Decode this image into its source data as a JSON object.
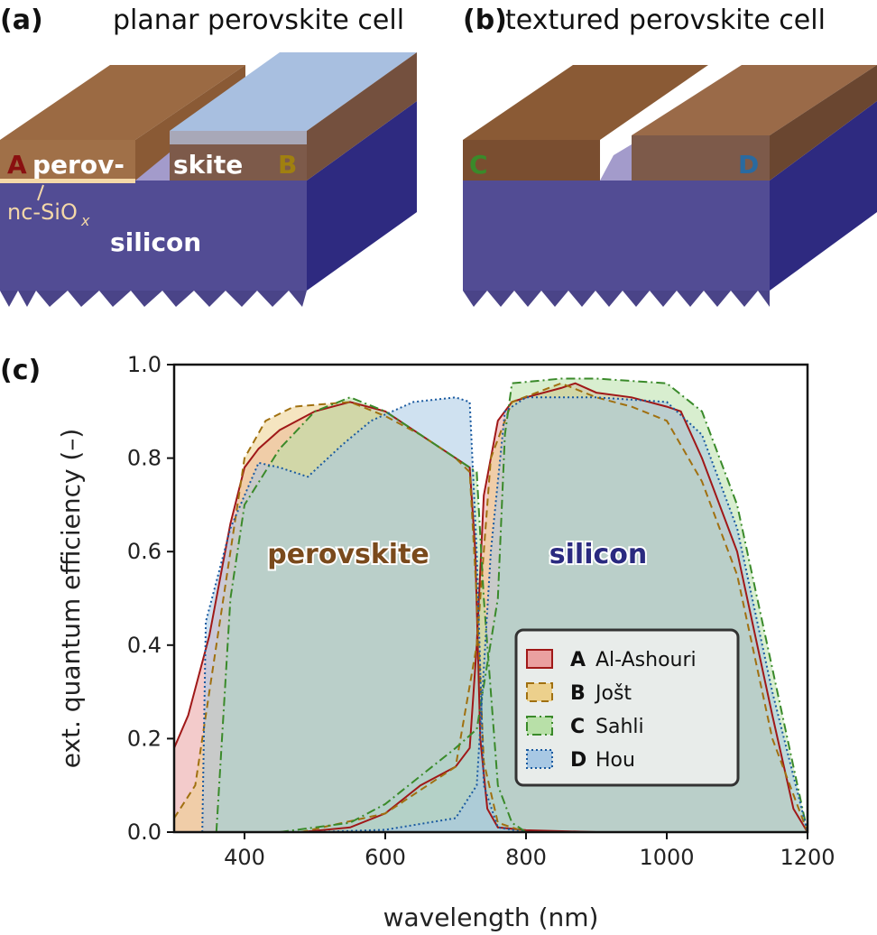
{
  "panels": {
    "a": {
      "label": "(a)",
      "title": "planar perovskite cell",
      "perov_left": "perov-",
      "perov_right": "skite",
      "marker_a": "A",
      "marker_b": "B",
      "sio_main": "nc-SiO",
      "sio_sub": "x",
      "silicon": "silicon"
    },
    "b": {
      "label": "(b)",
      "title": "textured perovskite cell",
      "marker_c": "C",
      "marker_d": "D"
    },
    "c": {
      "label": "(c)"
    }
  },
  "colors": {
    "perovskite": "#9b6a43",
    "silicon": "#524c94",
    "silicon_side": "#2e2a80",
    "overlap": "#8eaa96"
  },
  "chart_data": {
    "type": "area",
    "xlabel": "wavelength (nm)",
    "ylabel": "ext. quantum efficiency (–)",
    "xlim": [
      300,
      1200
    ],
    "ylim": [
      0,
      1.0
    ],
    "xticks": [
      "400",
      "600",
      "800",
      "1000",
      "1200"
    ],
    "yticks": [
      "0.0",
      "0.2",
      "0.4",
      "0.6",
      "0.8",
      "1.0"
    ],
    "annotations": {
      "perovskite": "perovskite",
      "silicon": "silicon"
    },
    "legend_position": "lower-right",
    "series": [
      {
        "id": "A",
        "name": "Al-Ashouri",
        "line": "#a01818",
        "fill": "#eaa0a0",
        "dash": "",
        "perovskite": [
          [
            300,
            0.18
          ],
          [
            320,
            0.25
          ],
          [
            350,
            0.42
          ],
          [
            380,
            0.66
          ],
          [
            400,
            0.78
          ],
          [
            420,
            0.82
          ],
          [
            450,
            0.86
          ],
          [
            500,
            0.9
          ],
          [
            550,
            0.92
          ],
          [
            600,
            0.9
          ],
          [
            650,
            0.85
          ],
          [
            700,
            0.8
          ],
          [
            720,
            0.78
          ],
          [
            728,
            0.6
          ],
          [
            735,
            0.2
          ],
          [
            745,
            0.05
          ],
          [
            760,
            0.01
          ],
          [
            800,
            0.004
          ],
          [
            900,
            0
          ]
        ],
        "silicon": [
          [
            480,
            0
          ],
          [
            550,
            0.01
          ],
          [
            600,
            0.04
          ],
          [
            650,
            0.1
          ],
          [
            700,
            0.14
          ],
          [
            720,
            0.18
          ],
          [
            730,
            0.4
          ],
          [
            740,
            0.72
          ],
          [
            760,
            0.88
          ],
          [
            780,
            0.92
          ],
          [
            800,
            0.93
          ],
          [
            850,
            0.95
          ],
          [
            870,
            0.96
          ],
          [
            900,
            0.94
          ],
          [
            950,
            0.93
          ],
          [
            1000,
            0.91
          ],
          [
            1020,
            0.9
          ],
          [
            1050,
            0.8
          ],
          [
            1100,
            0.6
          ],
          [
            1150,
            0.25
          ],
          [
            1180,
            0.05
          ],
          [
            1200,
            0
          ]
        ]
      },
      {
        "id": "B",
        "name": "Jošt",
        "line": "#a07010",
        "fill": "#ecd08c",
        "dash": "8,5",
        "perovskite": [
          [
            300,
            0.03
          ],
          [
            330,
            0.1
          ],
          [
            350,
            0.3
          ],
          [
            380,
            0.6
          ],
          [
            400,
            0.8
          ],
          [
            430,
            0.88
          ],
          [
            470,
            0.91
          ],
          [
            550,
            0.92
          ],
          [
            600,
            0.89
          ],
          [
            650,
            0.85
          ],
          [
            700,
            0.8
          ],
          [
            720,
            0.77
          ],
          [
            730,
            0.5
          ],
          [
            740,
            0.15
          ],
          [
            760,
            0.02
          ],
          [
            800,
            0
          ]
        ],
        "silicon": [
          [
            480,
            0
          ],
          [
            600,
            0.04
          ],
          [
            700,
            0.14
          ],
          [
            730,
            0.4
          ],
          [
            750,
            0.8
          ],
          [
            780,
            0.92
          ],
          [
            850,
            0.96
          ],
          [
            900,
            0.93
          ],
          [
            950,
            0.91
          ],
          [
            1000,
            0.88
          ],
          [
            1050,
            0.75
          ],
          [
            1100,
            0.55
          ],
          [
            1150,
            0.2
          ],
          [
            1200,
            0
          ]
        ]
      },
      {
        "id": "C",
        "name": "Sahli",
        "line": "#3a8a2a",
        "fill": "#b8e0a8",
        "dash": "10,4,2,4",
        "perovskite": [
          [
            360,
            0
          ],
          [
            380,
            0.5
          ],
          [
            400,
            0.7
          ],
          [
            450,
            0.82
          ],
          [
            500,
            0.9
          ],
          [
            550,
            0.93
          ],
          [
            600,
            0.9
          ],
          [
            650,
            0.85
          ],
          [
            700,
            0.8
          ],
          [
            730,
            0.77
          ],
          [
            740,
            0.5
          ],
          [
            760,
            0.1
          ],
          [
            780,
            0.02
          ],
          [
            800,
            0
          ]
        ],
        "silicon": [
          [
            450,
            0
          ],
          [
            550,
            0.02
          ],
          [
            600,
            0.06
          ],
          [
            650,
            0.12
          ],
          [
            700,
            0.18
          ],
          [
            730,
            0.22
          ],
          [
            760,
            0.5
          ],
          [
            770,
            0.85
          ],
          [
            780,
            0.96
          ],
          [
            850,
            0.97
          ],
          [
            900,
            0.97
          ],
          [
            1000,
            0.96
          ],
          [
            1050,
            0.9
          ],
          [
            1100,
            0.7
          ],
          [
            1150,
            0.35
          ],
          [
            1200,
            0
          ]
        ]
      },
      {
        "id": "D",
        "name": "Hou",
        "line": "#1a5aa0",
        "fill": "#a8c8e4",
        "dash": "2,3",
        "perovskite": [
          [
            340,
            0
          ],
          [
            345,
            0.45
          ],
          [
            380,
            0.65
          ],
          [
            420,
            0.79
          ],
          [
            450,
            0.78
          ],
          [
            490,
            0.76
          ],
          [
            540,
            0.83
          ],
          [
            580,
            0.88
          ],
          [
            640,
            0.92
          ],
          [
            700,
            0.93
          ],
          [
            720,
            0.92
          ],
          [
            730,
            0.6
          ],
          [
            740,
            0.1
          ],
          [
            760,
            0.01
          ],
          [
            800,
            0
          ]
        ],
        "silicon": [
          [
            500,
            0
          ],
          [
            600,
            0.005
          ],
          [
            700,
            0.03
          ],
          [
            730,
            0.1
          ],
          [
            750,
            0.6
          ],
          [
            770,
            0.9
          ],
          [
            800,
            0.93
          ],
          [
            900,
            0.93
          ],
          [
            1000,
            0.92
          ],
          [
            1050,
            0.85
          ],
          [
            1100,
            0.65
          ],
          [
            1150,
            0.3
          ],
          [
            1200,
            0
          ]
        ]
      }
    ]
  }
}
